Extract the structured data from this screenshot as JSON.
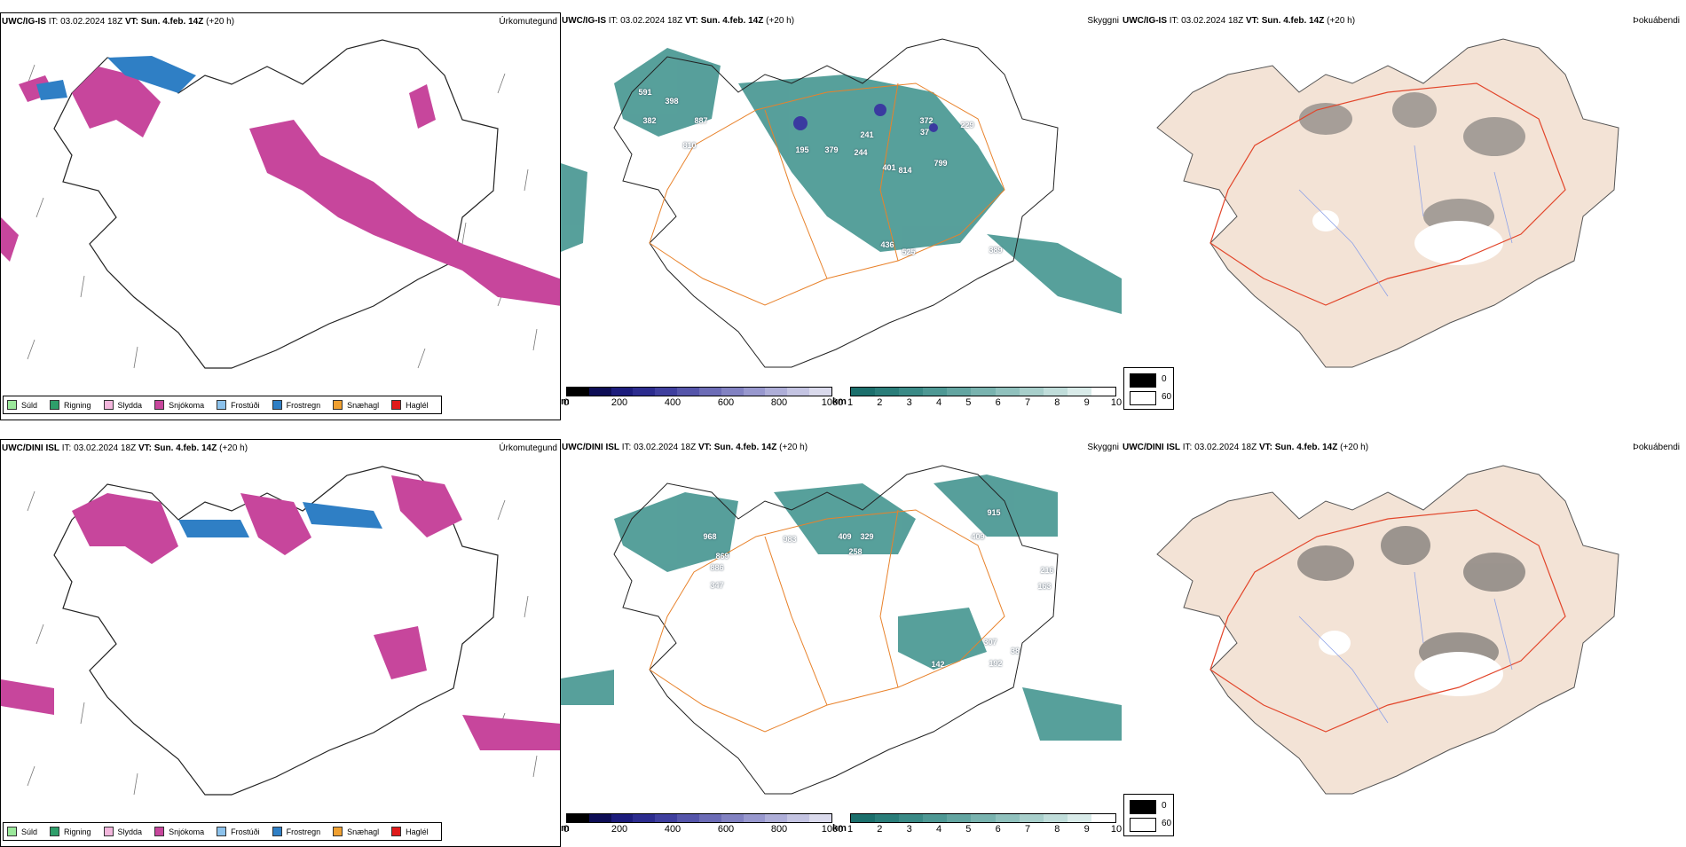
{
  "rows": [
    {
      "model": "UWC/IG-IS",
      "it_label": "IT:",
      "it_value": "03.02.2024 18Z",
      "vt_label": "VT:",
      "vt_value": "Sun. 4.feb. 14Z",
      "lead": "(+20 h)",
      "vis_labels": [
        "591",
        "398",
        "382",
        "887",
        "810",
        "195",
        "379",
        "241",
        "244",
        "401",
        "814",
        "372",
        "37",
        "229",
        "799",
        "436",
        "525",
        "389"
      ]
    },
    {
      "model": "UWC/DINI ISL",
      "it_label": "IT:",
      "it_value": "03.02.2024 18Z",
      "vt_label": "VT:",
      "vt_value": "Sun. 4.feb. 14Z",
      "lead": "(+20 h)",
      "vis_labels": [
        "968",
        "869",
        "886",
        "347",
        "983",
        "409",
        "329",
        "258",
        "915",
        "409",
        "216",
        "163",
        "142",
        "307",
        "38",
        "192"
      ]
    }
  ],
  "panel_titles": {
    "precip": "Úrkomutegund",
    "visibility": "Skyggni",
    "bokuabendi": "Þokuábendi"
  },
  "precip_legend": [
    {
      "label": "Súld",
      "color": "#9be89b"
    },
    {
      "label": "Rigning",
      "color": "#2e9e6a"
    },
    {
      "label": "Slydda",
      "color": "#f2b6dc"
    },
    {
      "label": "Snjókoma",
      "color": "#c7469c"
    },
    {
      "label": "Frostúði",
      "color": "#8cc2ec"
    },
    {
      "label": "Frostregn",
      "color": "#2f7fc5"
    },
    {
      "label": "Snæhagl",
      "color": "#f0a030"
    },
    {
      "label": "Haglél",
      "color": "#e01a1a"
    }
  ],
  "elevation_bar": {
    "unit": "m",
    "ticks": [
      "0",
      "200",
      "400",
      "600",
      "800",
      "1000"
    ],
    "colors": [
      "#000000",
      "#0d0d55",
      "#1c1c7c",
      "#2c2c8e",
      "#3f3f9e",
      "#5555aa",
      "#6c6cb6",
      "#8282c2",
      "#9898ce",
      "#aeaed8",
      "#c4c4e2",
      "#dadaec"
    ]
  },
  "km_bar": {
    "unit": "km",
    "ticks": [
      "1",
      "2",
      "3",
      "4",
      "5",
      "6",
      "7",
      "8",
      "9",
      "10"
    ],
    "colors": [
      "#1b6f6c",
      "#2a7d79",
      "#3a8a86",
      "#4e9894",
      "#63a5a1",
      "#79b3af",
      "#90c1bd",
      "#a8cfcb",
      "#c0ddda",
      "#d9ebe9",
      "#ffffff"
    ]
  },
  "bokua_legend": [
    {
      "label": "0",
      "color": "#000000"
    },
    {
      "label": "60",
      "color": "#ffffff"
    }
  ],
  "colors": {
    "snow": "#c7469c",
    "freezing_rain": "#2f7fc5",
    "vis_teal": "#3a8f8a",
    "road_orange": "#e8822b",
    "land_beige": "#f3e3d6",
    "red_roads": "#e2452a"
  }
}
